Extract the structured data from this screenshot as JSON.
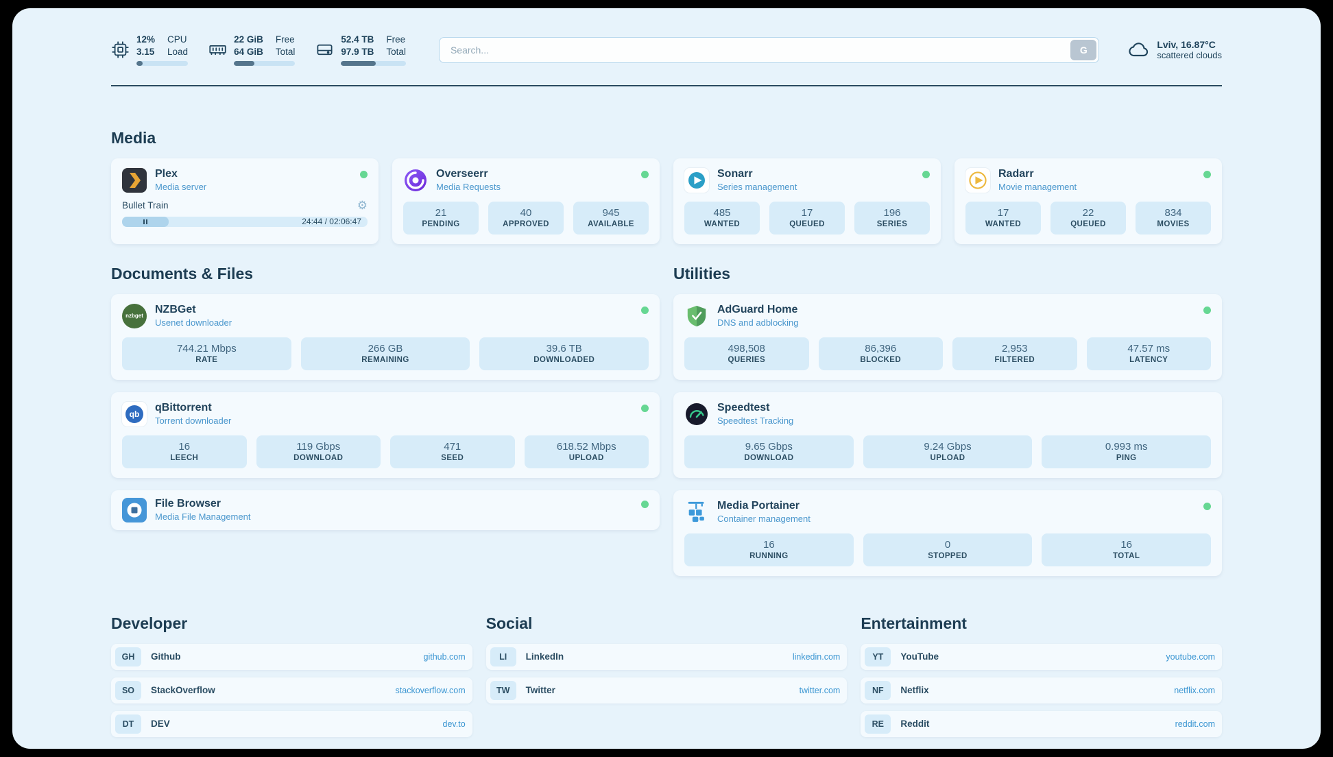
{
  "palette": {
    "page_bg": "#e7f3fb",
    "card_bg": "#f4fafe",
    "stat_bg": "#d7ecf9",
    "text_dark": "#1d3d50",
    "subtitle_blue": "#4a97cd",
    "link_blue": "#3b96d2",
    "status_green": "#66d793"
  },
  "topbar": {
    "cpu": {
      "values": [
        "12%",
        "3.15"
      ],
      "labels": [
        "CPU",
        "Load"
      ],
      "percent": 12
    },
    "memory": {
      "values": [
        "22 GiB",
        "64 GiB"
      ],
      "labels": [
        "Free",
        "Total"
      ],
      "percent": 34
    },
    "storage": {
      "values": [
        "52.4 TB",
        "97.9 TB"
      ],
      "labels": [
        "Free",
        "Total"
      ],
      "percent": 54
    },
    "search": {
      "placeholder": "Search...",
      "button_label": "G"
    },
    "weather": {
      "location": "Lviv, 16.87°C",
      "condition": "scattered clouds"
    }
  },
  "sections": {
    "media": "Media",
    "documents": "Documents & Files",
    "utilities": "Utilities",
    "developer": "Developer",
    "social": "Social",
    "entertainment": "Entertainment"
  },
  "apps": {
    "plex": {
      "name": "Plex",
      "subtitle": "Media server",
      "now_playing": "Bullet Train",
      "progress_time": "24:44 / 02:06:47",
      "progress_percent": 19
    },
    "overseerr": {
      "name": "Overseerr",
      "subtitle": "Media Requests",
      "stats": [
        {
          "value": "21",
          "label": "PENDING"
        },
        {
          "value": "40",
          "label": "APPROVED"
        },
        {
          "value": "945",
          "label": "AVAILABLE"
        }
      ]
    },
    "sonarr": {
      "name": "Sonarr",
      "subtitle": "Series management",
      "stats": [
        {
          "value": "485",
          "label": "WANTED"
        },
        {
          "value": "17",
          "label": "QUEUED"
        },
        {
          "value": "196",
          "label": "SERIES"
        }
      ]
    },
    "radarr": {
      "name": "Radarr",
      "subtitle": "Movie management",
      "stats": [
        {
          "value": "17",
          "label": "WANTED"
        },
        {
          "value": "22",
          "label": "QUEUED"
        },
        {
          "value": "834",
          "label": "MOVIES"
        }
      ]
    },
    "nzbget": {
      "name": "NZBGet",
      "subtitle": "Usenet downloader",
      "icon_text": "nzbget",
      "stats": [
        {
          "value": "744.21 Mbps",
          "label": "RATE"
        },
        {
          "value": "266 GB",
          "label": "REMAINING"
        },
        {
          "value": "39.6 TB",
          "label": "DOWNLOADED"
        }
      ]
    },
    "qbittorrent": {
      "name": "qBittorrent",
      "subtitle": "Torrent downloader",
      "icon_text": "qb",
      "stats": [
        {
          "value": "16",
          "label": "LEECH"
        },
        {
          "value": "119 Gbps",
          "label": "DOWNLOAD"
        },
        {
          "value": "471",
          "label": "SEED"
        },
        {
          "value": "618.52 Mbps",
          "label": "UPLOAD"
        }
      ]
    },
    "filebrowser": {
      "name": "File Browser",
      "subtitle": "Media File Management"
    },
    "adguard": {
      "name": "AdGuard Home",
      "subtitle": "DNS and adblocking",
      "stats": [
        {
          "value": "498,508",
          "label": "QUERIES"
        },
        {
          "value": "86,396",
          "label": "BLOCKED"
        },
        {
          "value": "2,953",
          "label": "FILTERED"
        },
        {
          "value": "47.57 ms",
          "label": "LATENCY"
        }
      ]
    },
    "speedtest": {
      "name": "Speedtest",
      "subtitle": "Speedtest Tracking",
      "stats": [
        {
          "value": "9.65 Gbps",
          "label": "DOWNLOAD"
        },
        {
          "value": "9.24 Gbps",
          "label": "UPLOAD"
        },
        {
          "value": "0.993 ms",
          "label": "PING"
        }
      ]
    },
    "portainer": {
      "name": "Media Portainer",
      "subtitle": "Container management",
      "stats": [
        {
          "value": "16",
          "label": "RUNNING"
        },
        {
          "value": "0",
          "label": "STOPPED"
        },
        {
          "value": "16",
          "label": "TOTAL"
        }
      ]
    }
  },
  "bookmarks": {
    "developer": [
      {
        "abbr": "GH",
        "name": "Github",
        "url": "github.com"
      },
      {
        "abbr": "SO",
        "name": "StackOverflow",
        "url": "stackoverflow.com"
      },
      {
        "abbr": "DT",
        "name": "DEV",
        "url": "dev.to"
      }
    ],
    "social": [
      {
        "abbr": "LI",
        "name": "LinkedIn",
        "url": "linkedin.com"
      },
      {
        "abbr": "TW",
        "name": "Twitter",
        "url": "twitter.com"
      }
    ],
    "entertainment": [
      {
        "abbr": "YT",
        "name": "YouTube",
        "url": "youtube.com"
      },
      {
        "abbr": "NF",
        "name": "Netflix",
        "url": "netflix.com"
      },
      {
        "abbr": "RE",
        "name": "Reddit",
        "url": "reddit.com"
      }
    ]
  }
}
